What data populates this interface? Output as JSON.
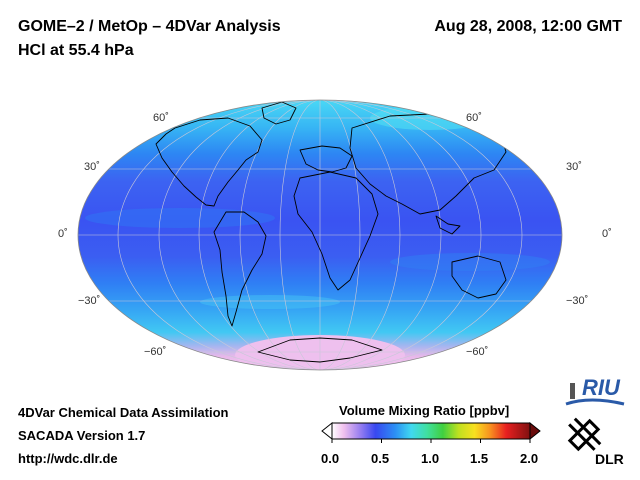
{
  "header": {
    "title": "GOME–2 / MetOp – 4DVar Analysis",
    "subtitle": "HCl at 55.4 hPa",
    "datetime": "Aug 28, 2008, 12:00 GMT"
  },
  "map": {
    "projection": "Mollweide",
    "lat_labels": [
      "60˚",
      "30˚",
      "0˚",
      "−30˚",
      "−60˚"
    ],
    "colors": {
      "tropics": "#3a56f2",
      "midlat": "#2f8cf5",
      "highlat": "#35c8f3",
      "polar": "#e9b6e8",
      "coast": "#000000",
      "grid": "#c8c8d8"
    }
  },
  "colorbar": {
    "title": "Volume Mixing Ratio [ppbv]",
    "ticks": [
      "0.0",
      "0.5",
      "1.0",
      "1.5",
      "2.0"
    ],
    "min": 0.0,
    "max": 2.0
  },
  "footer": {
    "line1": "4DVar Chemical Data Assimilation",
    "line2": "SACADA Version 1.7",
    "url": "http://wdc.dlr.de"
  },
  "logos": {
    "riu": "RIU",
    "dlr": "DLR"
  }
}
